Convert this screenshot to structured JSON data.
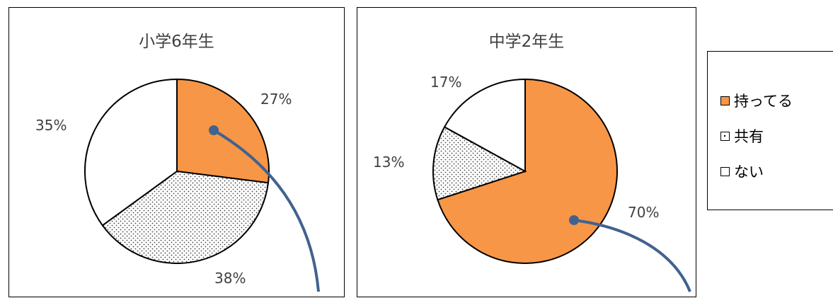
{
  "colors": {
    "has": "#F79646",
    "shared_pattern": "dots",
    "none": "#FFFFFF",
    "leader": "#41628F"
  },
  "legend": [
    "持ってる",
    "共有",
    "ない"
  ],
  "chart_data": [
    {
      "type": "pie",
      "title": "小学6年生",
      "categories": [
        "持ってる",
        "共有",
        "ない"
      ],
      "values": [
        27,
        38,
        35
      ],
      "labels": [
        "27%",
        "38%",
        "35%"
      ],
      "legend_position": "right"
    },
    {
      "type": "pie",
      "title": "中学2年生",
      "categories": [
        "持ってる",
        "共有",
        "ない"
      ],
      "values": [
        70,
        13,
        17
      ],
      "labels": [
        "70%",
        "13%",
        "17%"
      ],
      "legend_position": "right"
    }
  ]
}
